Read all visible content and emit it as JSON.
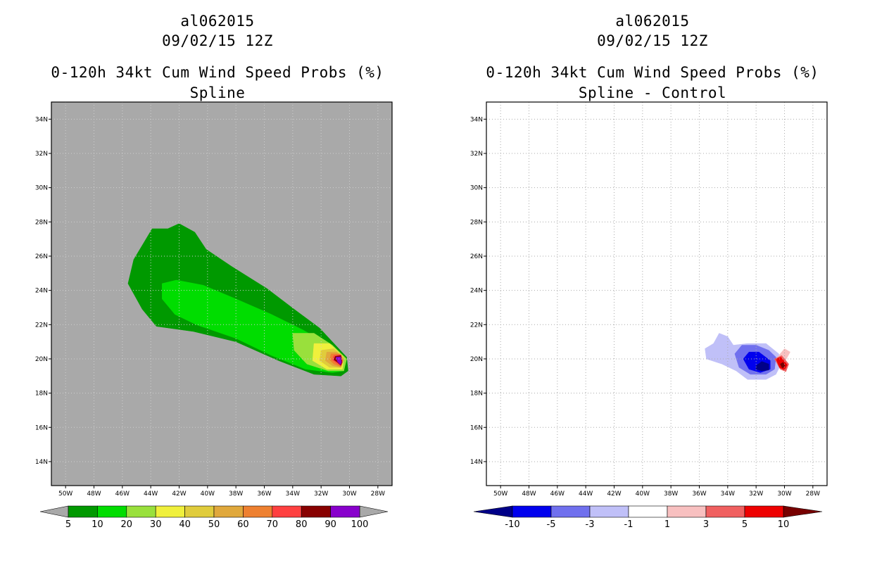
{
  "chart_data": [
    {
      "type": "heatmap",
      "title_line1": "al062015",
      "title_line2": "09/02/15 12Z",
      "title_line3": "0-120h 34kt Cum Wind Speed Probs (%)",
      "subtitle": "Spline",
      "xticks": [
        "50W",
        "48W",
        "46W",
        "44W",
        "42W",
        "40W",
        "38W",
        "36W",
        "34W",
        "32W",
        "30W",
        "28W"
      ],
      "yticks": [
        "34N",
        "32N",
        "30N",
        "28N",
        "26N",
        "24N",
        "22N",
        "20N",
        "18N",
        "16N",
        "14N"
      ],
      "xlim": [
        -51,
        -27
      ],
      "ylim": [
        12.6,
        35
      ],
      "grid": true,
      "background_color": "#a9a9a9",
      "contour_levels": [
        5,
        10,
        20,
        30,
        40,
        50,
        60,
        70,
        80,
        90,
        100
      ],
      "colorbar_labels": [
        "5",
        "10",
        "20",
        "30",
        "40",
        "50",
        "60",
        "70",
        "80",
        "90",
        "100"
      ],
      "colorbar_colors": [
        "#009900",
        "#00dd00",
        "#99e03c",
        "#f0f03c",
        "#e0cc3c",
        "#e0a83c",
        "#ee8030",
        "#ff4040",
        "#880000",
        "#8800cc"
      ],
      "contours": [
        {
          "level": 5,
          "color": "#009900",
          "points": [
            [
              -45.6,
              24.4
            ],
            [
              -45.2,
              25.8
            ],
            [
              -43.9,
              27.6
            ],
            [
              -42.8,
              27.6
            ],
            [
              -42.0,
              27.9
            ],
            [
              -40.9,
              27.4
            ],
            [
              -40.1,
              26.4
            ],
            [
              -38.3,
              25.4
            ],
            [
              -35.8,
              24.1
            ],
            [
              -33.9,
              22.9
            ],
            [
              -32.1,
              21.8
            ],
            [
              -30.2,
              20.1
            ],
            [
              -30.1,
              19.3
            ],
            [
              -30.6,
              19.0
            ],
            [
              -32.5,
              19.1
            ],
            [
              -35.0,
              19.9
            ],
            [
              -38.0,
              21.0
            ],
            [
              -41.0,
              21.6
            ],
            [
              -43.6,
              21.9
            ],
            [
              -44.6,
              22.9
            ]
          ]
        },
        {
          "level": 10,
          "color": "#00dd00",
          "points": [
            [
              -43.2,
              24.4
            ],
            [
              -42.2,
              24.6
            ],
            [
              -40.3,
              24.3
            ],
            [
              -38.0,
              23.5
            ],
            [
              -35.5,
              22.6
            ],
            [
              -33.3,
              21.7
            ],
            [
              -31.6,
              20.9
            ],
            [
              -30.3,
              20.0
            ],
            [
              -30.4,
              19.3
            ],
            [
              -31.2,
              19.2
            ],
            [
              -33.1,
              19.4
            ],
            [
              -35.5,
              20.2
            ],
            [
              -38.0,
              21.2
            ],
            [
              -40.8,
              22.0
            ],
            [
              -42.3,
              22.6
            ],
            [
              -43.2,
              23.5
            ]
          ]
        },
        {
          "level": 20,
          "color": "#99e03c",
          "points": [
            [
              -34.0,
              21.5
            ],
            [
              -32.5,
              21.5
            ],
            [
              -31.2,
              20.8
            ],
            [
              -30.2,
              20.0
            ],
            [
              -30.4,
              19.3
            ],
            [
              -31.5,
              19.3
            ],
            [
              -33.0,
              19.7
            ],
            [
              -33.9,
              20.5
            ]
          ]
        },
        {
          "level": 30,
          "color": "#f0f03c",
          "points": [
            [
              -32.5,
              20.9
            ],
            [
              -31.4,
              20.9
            ],
            [
              -30.4,
              20.1
            ],
            [
              -30.5,
              19.4
            ],
            [
              -31.6,
              19.4
            ],
            [
              -32.6,
              19.9
            ]
          ]
        },
        {
          "level": 40,
          "color": "#e0cc3c",
          "points": [
            [
              -32.0,
              20.5
            ],
            [
              -31.1,
              20.6
            ],
            [
              -30.4,
              20.1
            ],
            [
              -30.6,
              19.5
            ],
            [
              -31.4,
              19.5
            ],
            [
              -32.1,
              19.9
            ]
          ]
        },
        {
          "level": 50,
          "color": "#e0a83c",
          "points": [
            [
              -31.6,
              20.4
            ],
            [
              -30.9,
              20.4
            ],
            [
              -30.4,
              20.0
            ],
            [
              -30.6,
              19.5
            ],
            [
              -31.2,
              19.6
            ],
            [
              -31.7,
              19.9
            ]
          ]
        },
        {
          "level": 60,
          "color": "#ee8030",
          "points": [
            [
              -31.3,
              20.3
            ],
            [
              -30.7,
              20.3
            ],
            [
              -30.45,
              19.9
            ],
            [
              -30.6,
              19.55
            ],
            [
              -31.1,
              19.7
            ],
            [
              -31.4,
              19.95
            ]
          ]
        },
        {
          "level": 70,
          "color": "#ff4040",
          "points": [
            [
              -31.1,
              20.2
            ],
            [
              -30.6,
              20.25
            ],
            [
              -30.5,
              19.8
            ],
            [
              -30.6,
              19.6
            ],
            [
              -30.9,
              19.75
            ],
            [
              -31.2,
              19.95
            ]
          ]
        },
        {
          "level": 80,
          "color": "#880000",
          "points": [
            [
              -31.0,
              20.15
            ],
            [
              -30.6,
              20.2
            ],
            [
              -30.52,
              19.8
            ],
            [
              -30.62,
              19.62
            ],
            [
              -30.85,
              19.8
            ],
            [
              -31.1,
              19.95
            ]
          ]
        },
        {
          "level": 90,
          "color": "#8800cc",
          "points": [
            [
              -30.95,
              20.1
            ],
            [
              -30.62,
              20.12
            ],
            [
              -30.56,
              19.8
            ],
            [
              -30.65,
              19.66
            ],
            [
              -30.85,
              19.85
            ]
          ]
        }
      ]
    },
    {
      "type": "heatmap",
      "title_line1": "al062015",
      "title_line2": "09/02/15 12Z",
      "title_line3": "0-120h 34kt Cum Wind Speed Probs (%)",
      "subtitle": "Spline - Control",
      "xticks": [
        "50W",
        "48W",
        "46W",
        "44W",
        "42W",
        "40W",
        "38W",
        "36W",
        "34W",
        "32W",
        "30W",
        "28W"
      ],
      "yticks": [
        "34N",
        "32N",
        "30N",
        "28N",
        "26N",
        "24N",
        "22N",
        "20N",
        "18N",
        "16N",
        "14N"
      ],
      "xlim": [
        -51,
        -27
      ],
      "ylim": [
        12.6,
        35
      ],
      "grid": true,
      "background_color": "#ffffff",
      "contour_levels": [
        -10,
        -5,
        -3,
        -1,
        1,
        3,
        5,
        10
      ],
      "colorbar_labels": [
        "-10",
        "-5",
        "-3",
        "-1",
        "1",
        "3",
        "5",
        "10"
      ],
      "colorbar_colors": [
        "#000088",
        "#0000ee",
        "#7070ee",
        "#c0c0f8",
        "#ffffff",
        "#f8c0c0",
        "#f06060",
        "#ee0000",
        "#770000"
      ],
      "contours": [
        {
          "level": -1,
          "color": "#c0c0f8",
          "points": [
            [
              -35.6,
              20.6
            ],
            [
              -35.0,
              20.9
            ],
            [
              -34.6,
              21.5
            ],
            [
              -34.0,
              21.3
            ],
            [
              -33.6,
              20.8
            ],
            [
              -32.6,
              20.9
            ],
            [
              -31.3,
              20.9
            ],
            [
              -30.4,
              20.3
            ],
            [
              -30.3,
              19.6
            ],
            [
              -30.6,
              19.1
            ],
            [
              -31.3,
              18.8
            ],
            [
              -32.6,
              18.8
            ],
            [
              -33.4,
              19.3
            ],
            [
              -34.4,
              19.7
            ],
            [
              -35.5,
              20.0
            ]
          ]
        },
        {
          "level": -3,
          "color": "#7070ee",
          "points": [
            [
              -33.5,
              20.3
            ],
            [
              -33.0,
              20.8
            ],
            [
              -32.0,
              20.8
            ],
            [
              -31.1,
              20.5
            ],
            [
              -30.6,
              20.1
            ],
            [
              -30.7,
              19.4
            ],
            [
              -31.3,
              19.1
            ],
            [
              -32.4,
              19.1
            ],
            [
              -33.2,
              19.5
            ]
          ]
        },
        {
          "level": -5,
          "color": "#0000ee",
          "points": [
            [
              -32.9,
              20.0
            ],
            [
              -32.5,
              20.4
            ],
            [
              -31.8,
              20.4
            ],
            [
              -31.0,
              19.9
            ],
            [
              -31.0,
              19.4
            ],
            [
              -31.7,
              19.2
            ],
            [
              -32.5,
              19.4
            ]
          ]
        },
        {
          "level": -10,
          "color": "#000088",
          "points": [
            [
              -32.0,
              19.6
            ],
            [
              -31.6,
              19.85
            ],
            [
              -31.1,
              19.7
            ],
            [
              -31.1,
              19.35
            ],
            [
              -31.6,
              19.3
            ],
            [
              -32.0,
              19.4
            ]
          ]
        },
        {
          "level": 1,
          "color": "#f8c0c0",
          "points": [
            [
              -30.6,
              20.0
            ],
            [
              -30.0,
              20.6
            ],
            [
              -29.6,
              20.4
            ],
            [
              -30.0,
              19.8
            ]
          ]
        },
        {
          "level": 3,
          "color": "#f06060",
          "points": [
            [
              -30.7,
              20.0
            ],
            [
              -30.2,
              20.2
            ],
            [
              -29.7,
              19.7
            ],
            [
              -29.9,
              19.25
            ],
            [
              -30.3,
              19.4
            ]
          ]
        },
        {
          "level": 5,
          "color": "#ee0000",
          "points": [
            [
              -30.6,
              20.0
            ],
            [
              -30.25,
              20.1
            ],
            [
              -29.8,
              19.65
            ],
            [
              -30.0,
              19.35
            ],
            [
              -30.35,
              19.5
            ]
          ]
        },
        {
          "level": 10,
          "color": "#770000",
          "points": [
            [
              -30.3,
              19.7
            ],
            [
              -30.1,
              19.8
            ],
            [
              -29.95,
              19.6
            ],
            [
              -30.15,
              19.45
            ]
          ]
        }
      ]
    }
  ]
}
